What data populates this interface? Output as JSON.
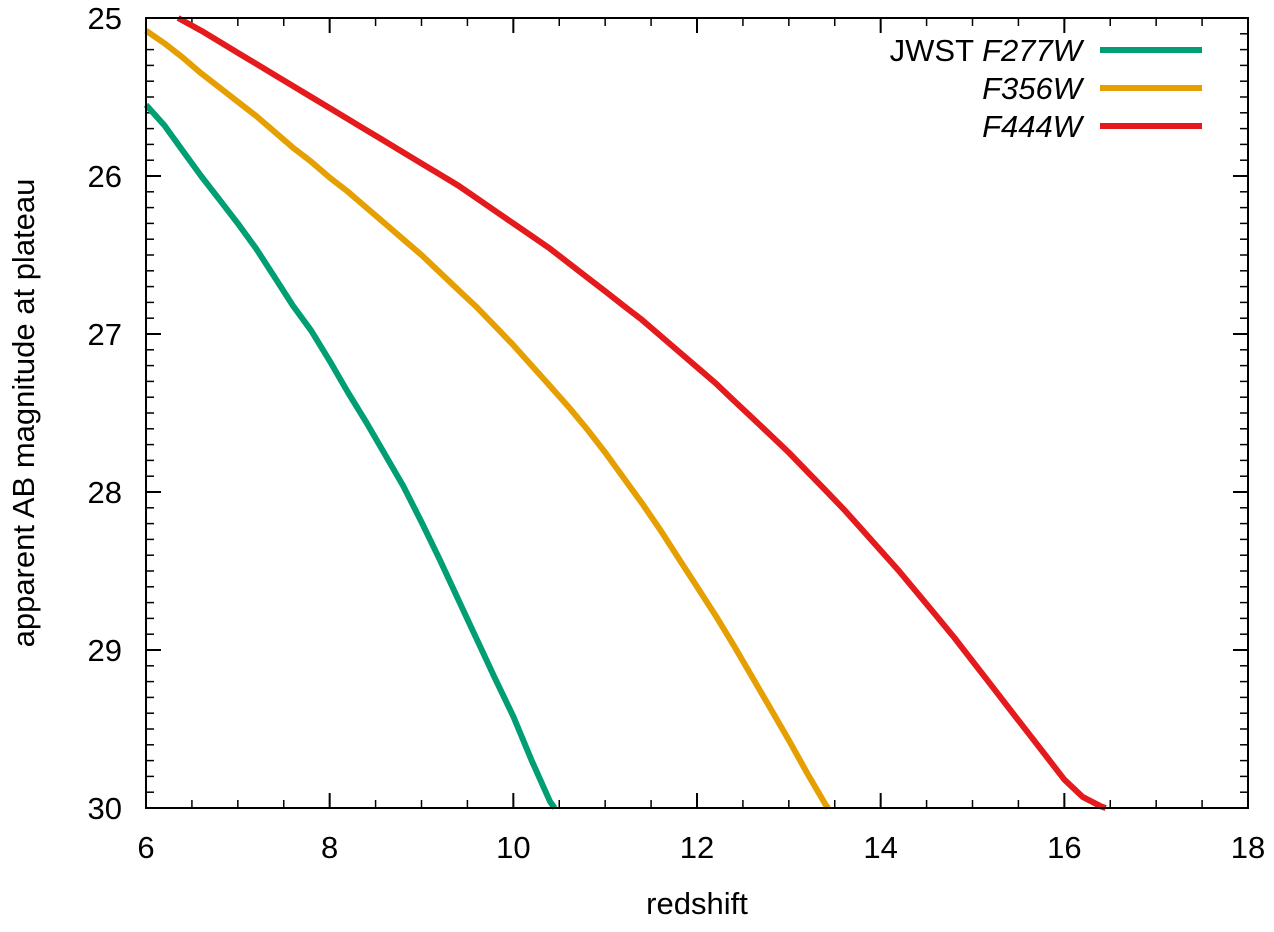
{
  "chart_data": {
    "type": "line",
    "title": "",
    "xlabel": "redshift",
    "ylabel": "apparent AB magnitude at plateau",
    "xlim": [
      6,
      18
    ],
    "ylim": [
      25,
      30
    ],
    "y_inverted": true,
    "x_ticks": [
      6,
      8,
      10,
      12,
      14,
      16,
      18
    ],
    "y_ticks": [
      25,
      26,
      27,
      28,
      29,
      30
    ],
    "grid": false,
    "legend_position": "top-right",
    "legend_prefix": "JWST",
    "series": [
      {
        "name": "F277W",
        "color": "#009e73",
        "x": [
          6.0,
          6.2,
          6.4,
          6.6,
          6.8,
          7.0,
          7.2,
          7.4,
          7.6,
          7.8,
          8.0,
          8.2,
          8.4,
          8.6,
          8.8,
          9.0,
          9.2,
          9.4,
          9.6,
          9.8,
          10.0,
          10.2,
          10.4,
          10.45
        ],
        "y": [
          25.55,
          25.68,
          25.84,
          26.0,
          26.15,
          26.3,
          26.46,
          26.64,
          26.82,
          26.98,
          27.17,
          27.37,
          27.56,
          27.76,
          27.96,
          28.19,
          28.43,
          28.68,
          28.93,
          29.18,
          29.42,
          29.7,
          29.96,
          30.0
        ]
      },
      {
        "name": "F356W",
        "color": "#e69f00",
        "x": [
          6.0,
          6.2,
          6.4,
          6.6,
          6.8,
          7.0,
          7.2,
          7.4,
          7.6,
          7.8,
          8.0,
          8.2,
          8.4,
          8.6,
          8.8,
          9.0,
          9.2,
          9.4,
          9.6,
          9.8,
          10.0,
          10.2,
          10.4,
          10.6,
          10.8,
          11.0,
          11.2,
          11.4,
          11.6,
          11.8,
          12.0,
          12.2,
          12.4,
          12.6,
          12.8,
          13.0,
          13.2,
          13.4,
          13.43
        ],
        "y": [
          25.08,
          25.16,
          25.25,
          25.35,
          25.44,
          25.53,
          25.62,
          25.72,
          25.82,
          25.91,
          26.01,
          26.1,
          26.2,
          26.3,
          26.4,
          26.5,
          26.61,
          26.72,
          26.83,
          26.95,
          27.07,
          27.2,
          27.33,
          27.46,
          27.6,
          27.75,
          27.91,
          28.07,
          28.24,
          28.42,
          28.6,
          28.78,
          28.97,
          29.17,
          29.37,
          29.57,
          29.78,
          29.98,
          30.0
        ]
      },
      {
        "name": "F444W",
        "color": "#e41a1c",
        "x": [
          6.35,
          6.6,
          6.8,
          7.0,
          7.2,
          7.4,
          7.6,
          7.8,
          8.0,
          8.2,
          8.4,
          8.6,
          8.8,
          9.0,
          9.2,
          9.4,
          9.6,
          9.8,
          10.0,
          10.2,
          10.4,
          10.6,
          10.8,
          11.0,
          11.2,
          11.4,
          11.6,
          11.8,
          12.0,
          12.2,
          12.4,
          12.6,
          12.8,
          13.0,
          13.2,
          13.4,
          13.6,
          13.8,
          14.0,
          14.2,
          14.4,
          14.6,
          14.8,
          15.0,
          15.2,
          15.4,
          15.6,
          15.8,
          16.0,
          16.2,
          16.4,
          16.45
        ],
        "y": [
          25.0,
          25.08,
          25.15,
          25.22,
          25.29,
          25.36,
          25.43,
          25.5,
          25.57,
          25.64,
          25.71,
          25.78,
          25.85,
          25.92,
          25.99,
          26.06,
          26.14,
          26.22,
          26.3,
          26.38,
          26.46,
          26.55,
          26.64,
          26.73,
          26.82,
          26.91,
          27.01,
          27.11,
          27.21,
          27.31,
          27.42,
          27.53,
          27.64,
          27.75,
          27.87,
          27.99,
          28.11,
          28.24,
          28.37,
          28.5,
          28.64,
          28.78,
          28.92,
          29.07,
          29.22,
          29.37,
          29.52,
          29.67,
          29.82,
          29.93,
          29.99,
          30.0
        ]
      }
    ]
  }
}
